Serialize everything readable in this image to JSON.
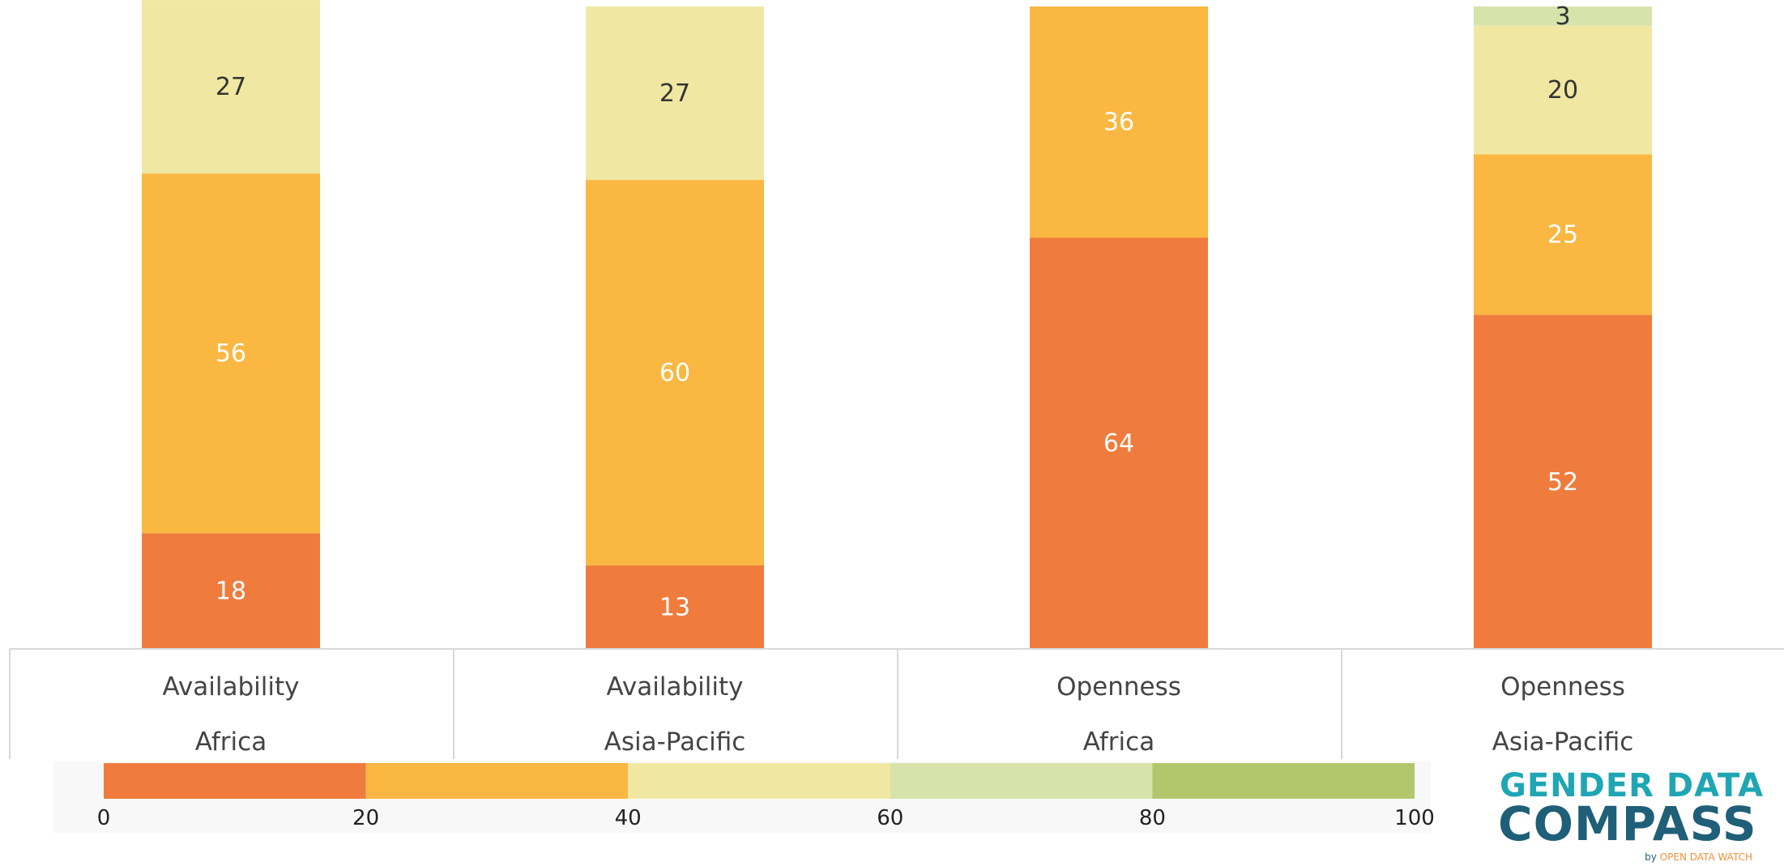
{
  "chart_data": {
    "type": "bar",
    "stacked": true,
    "normalized_percent": true,
    "categories": [
      {
        "dimension": "Availability",
        "region": "Africa"
      },
      {
        "dimension": "Availability",
        "region": "Asia-Pacific"
      },
      {
        "dimension": "Openness",
        "region": "Africa"
      },
      {
        "dimension": "Openness",
        "region": "Asia-Pacific"
      }
    ],
    "series": [
      {
        "band": "0-20",
        "color": "#ef7c3d",
        "values": [
          18,
          13,
          64,
          52
        ],
        "label_color": "#ffffff"
      },
      {
        "band": "20-40",
        "color": "#fab742",
        "values": [
          56,
          60,
          36,
          25
        ],
        "label_color": "#ffffff"
      },
      {
        "band": "40-60",
        "color": "#f0e8a2",
        "values": [
          27,
          27,
          0,
          20
        ],
        "label_color": "#333333"
      },
      {
        "band": "60-80",
        "color": "#d7e3ab",
        "values": [
          0,
          0,
          0,
          3
        ],
        "label_color": "#333333"
      },
      {
        "band": "80-100",
        "color": "#b2c76c",
        "values": [
          0,
          0,
          0,
          0
        ],
        "label_color": "#333333"
      }
    ],
    "ylim": [
      0,
      100
    ]
  },
  "legend": {
    "ticks": [
      "0",
      "20",
      "40",
      "60",
      "80",
      "100"
    ],
    "colors": [
      "#ef7c3d",
      "#fab742",
      "#f0e8a2",
      "#d7e3ab",
      "#b2c76c"
    ]
  },
  "logo": {
    "line1": "GENDER DATA",
    "line2": "COMPASS",
    "by": "by",
    "org": "OPEN DATA WATCH"
  }
}
